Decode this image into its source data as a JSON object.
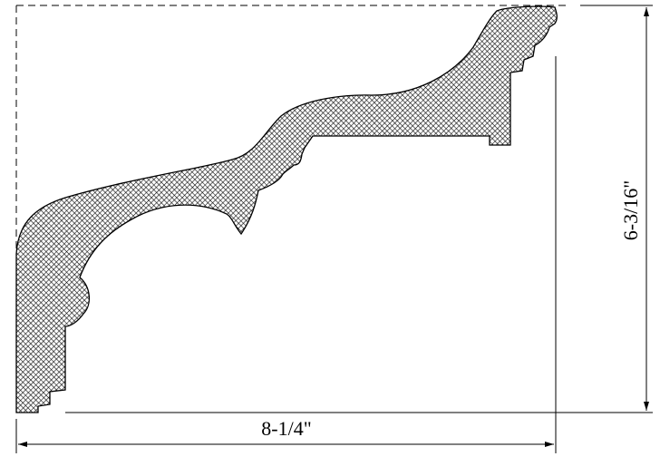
{
  "drawing": {
    "width_dimension_label": "8-1/4\"",
    "height_dimension_label": "6-3/16\""
  },
  "colors": {
    "line": "#000000",
    "background": "#ffffff",
    "hatch": "#000000"
  }
}
